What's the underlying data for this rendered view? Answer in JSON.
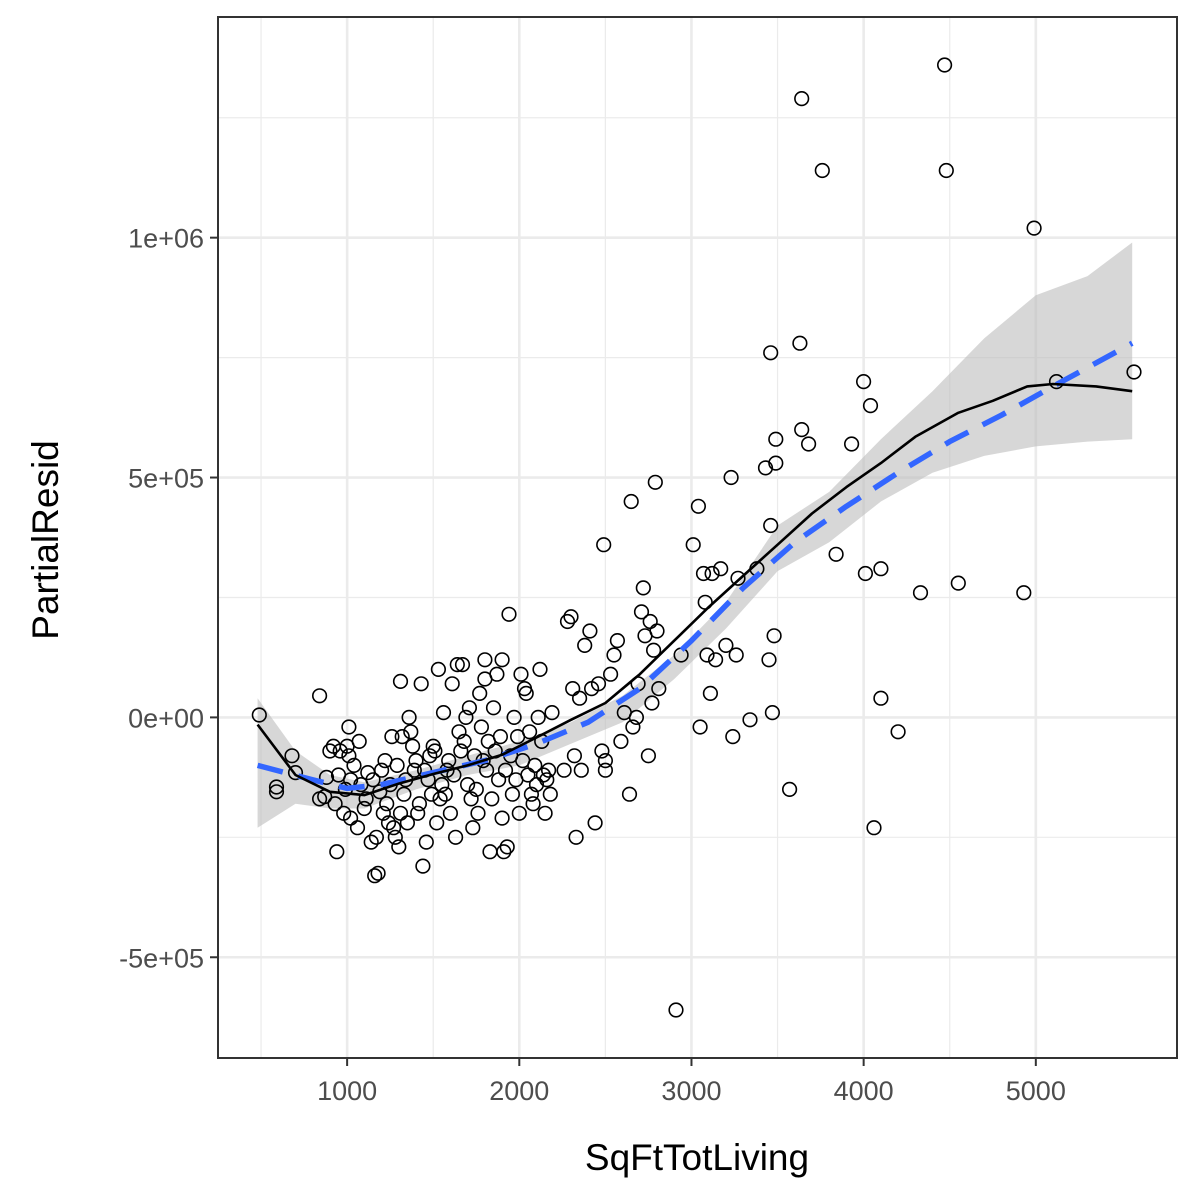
{
  "chart_data": {
    "type": "scatter",
    "title": "",
    "xlabel": "SqFtTotLiving",
    "ylabel": "PartialResid",
    "xlim": [
      250,
      5820
    ],
    "ylim": [
      -710000,
      1460000
    ],
    "x_ticks": [
      1000,
      2000,
      3000,
      4000,
      5000
    ],
    "x_tick_labels": [
      "1000",
      "2000",
      "3000",
      "4000",
      "5000"
    ],
    "y_ticks": [
      -500000,
      0,
      500000,
      1000000
    ],
    "y_tick_labels": [
      "-5e+05",
      "0e+00",
      "5e+05",
      "1e+06"
    ],
    "grid": true,
    "legend": "none",
    "colors": {
      "points": "#000000",
      "smooth_line": "#000000",
      "fit_line": "#3366FF",
      "ribbon": "#bdbdbd",
      "panel_border": "#333333",
      "grid": "#ebebeb"
    },
    "points": [
      [
        490,
        5000
      ],
      [
        590,
        -145000
      ],
      [
        590,
        -155000
      ],
      [
        680,
        -80000
      ],
      [
        700,
        -115000
      ],
      [
        840,
        45000
      ],
      [
        840,
        -170000
      ],
      [
        870,
        -165000
      ],
      [
        880,
        -125000
      ],
      [
        900,
        -70000
      ],
      [
        920,
        -60000
      ],
      [
        930,
        -180000
      ],
      [
        940,
        -280000
      ],
      [
        950,
        -120000
      ],
      [
        960,
        -70000
      ],
      [
        980,
        -200000
      ],
      [
        990,
        -150000
      ],
      [
        1000,
        -60000
      ],
      [
        1010,
        -20000
      ],
      [
        1010,
        -80000
      ],
      [
        1020,
        -130000
      ],
      [
        1020,
        -210000
      ],
      [
        1040,
        -100000
      ],
      [
        1060,
        -230000
      ],
      [
        1070,
        -50000
      ],
      [
        1080,
        -140000
      ],
      [
        1100,
        -190000
      ],
      [
        1110,
        -170000
      ],
      [
        1120,
        -115000
      ],
      [
        1140,
        -260000
      ],
      [
        1150,
        -130000
      ],
      [
        1160,
        -330000
      ],
      [
        1170,
        -250000
      ],
      [
        1180,
        -325000
      ],
      [
        1190,
        -155000
      ],
      [
        1200,
        -110000
      ],
      [
        1210,
        -200000
      ],
      [
        1220,
        -90000
      ],
      [
        1230,
        -180000
      ],
      [
        1240,
        -220000
      ],
      [
        1250,
        -140000
      ],
      [
        1260,
        -40000
      ],
      [
        1270,
        -230000
      ],
      [
        1280,
        -250000
      ],
      [
        1290,
        -100000
      ],
      [
        1300,
        -270000
      ],
      [
        1310,
        75000
      ],
      [
        1310,
        -200000
      ],
      [
        1320,
        -40000
      ],
      [
        1330,
        -160000
      ],
      [
        1340,
        -130000
      ],
      [
        1350,
        -220000
      ],
      [
        1360,
        0
      ],
      [
        1370,
        -30000
      ],
      [
        1380,
        -60000
      ],
      [
        1390,
        -110000
      ],
      [
        1400,
        -90000
      ],
      [
        1410,
        -200000
      ],
      [
        1420,
        -180000
      ],
      [
        1430,
        70000
      ],
      [
        1440,
        -310000
      ],
      [
        1450,
        -110000
      ],
      [
        1460,
        -260000
      ],
      [
        1470,
        -130000
      ],
      [
        1480,
        -80000
      ],
      [
        1490,
        -160000
      ],
      [
        1500,
        -60000
      ],
      [
        1510,
        -70000
      ],
      [
        1520,
        -220000
      ],
      [
        1530,
        100000
      ],
      [
        1540,
        -170000
      ],
      [
        1550,
        -140000
      ],
      [
        1560,
        10000
      ],
      [
        1570,
        -160000
      ],
      [
        1580,
        -110000
      ],
      [
        1590,
        -90000
      ],
      [
        1600,
        -200000
      ],
      [
        1610,
        70000
      ],
      [
        1620,
        -120000
      ],
      [
        1630,
        -250000
      ],
      [
        1640,
        110000
      ],
      [
        1650,
        -30000
      ],
      [
        1660,
        -70000
      ],
      [
        1670,
        110000
      ],
      [
        1680,
        -50000
      ],
      [
        1690,
        0
      ],
      [
        1700,
        -140000
      ],
      [
        1710,
        20000
      ],
      [
        1720,
        -170000
      ],
      [
        1730,
        -230000
      ],
      [
        1740,
        -80000
      ],
      [
        1750,
        -150000
      ],
      [
        1760,
        -200000
      ],
      [
        1770,
        50000
      ],
      [
        1780,
        -20000
      ],
      [
        1790,
        -90000
      ],
      [
        1800,
        120000
      ],
      [
        1800,
        80000
      ],
      [
        1810,
        -110000
      ],
      [
        1820,
        -50000
      ],
      [
        1830,
        -280000
      ],
      [
        1840,
        -170000
      ],
      [
        1850,
        20000
      ],
      [
        1860,
        -70000
      ],
      [
        1870,
        90000
      ],
      [
        1880,
        -130000
      ],
      [
        1890,
        -40000
      ],
      [
        1900,
        -210000
      ],
      [
        1900,
        120000
      ],
      [
        1910,
        -280000
      ],
      [
        1920,
        -110000
      ],
      [
        1930,
        -270000
      ],
      [
        1940,
        215000
      ],
      [
        1950,
        -80000
      ],
      [
        1960,
        -160000
      ],
      [
        1970,
        0
      ],
      [
        1980,
        -130000
      ],
      [
        1990,
        -40000
      ],
      [
        2000,
        -200000
      ],
      [
        2010,
        90000
      ],
      [
        2020,
        -90000
      ],
      [
        2030,
        60000
      ],
      [
        2040,
        50000
      ],
      [
        2050,
        -120000
      ],
      [
        2060,
        -30000
      ],
      [
        2070,
        -160000
      ],
      [
        2080,
        -180000
      ],
      [
        2090,
        -100000
      ],
      [
        2100,
        -140000
      ],
      [
        2110,
        0
      ],
      [
        2120,
        100000
      ],
      [
        2130,
        -50000
      ],
      [
        2140,
        -120000
      ],
      [
        2150,
        -200000
      ],
      [
        2160,
        -130000
      ],
      [
        2170,
        -110000
      ],
      [
        2180,
        -160000
      ],
      [
        2190,
        10000
      ],
      [
        2260,
        -110000
      ],
      [
        2280,
        200000
      ],
      [
        2300,
        210000
      ],
      [
        2310,
        60000
      ],
      [
        2320,
        -80000
      ],
      [
        2330,
        -250000
      ],
      [
        2350,
        40000
      ],
      [
        2360,
        -110000
      ],
      [
        2380,
        150000
      ],
      [
        2410,
        180000
      ],
      [
        2420,
        60000
      ],
      [
        2440,
        -220000
      ],
      [
        2460,
        70000
      ],
      [
        2480,
        -70000
      ],
      [
        2490,
        360000
      ],
      [
        2500,
        -110000
      ],
      [
        2500,
        -90000
      ],
      [
        2530,
        90000
      ],
      [
        2550,
        130000
      ],
      [
        2570,
        160000
      ],
      [
        2590,
        -50000
      ],
      [
        2610,
        10000
      ],
      [
        2640,
        -160000
      ],
      [
        2650,
        450000
      ],
      [
        2660,
        -20000
      ],
      [
        2680,
        0
      ],
      [
        2690,
        70000
      ],
      [
        2710,
        220000
      ],
      [
        2720,
        270000
      ],
      [
        2730,
        170000
      ],
      [
        2750,
        -80000
      ],
      [
        2760,
        200000
      ],
      [
        2770,
        30000
      ],
      [
        2780,
        140000
      ],
      [
        2790,
        490000
      ],
      [
        2800,
        180000
      ],
      [
        2810,
        60000
      ],
      [
        2910,
        -610000
      ],
      [
        2940,
        130000
      ],
      [
        3010,
        360000
      ],
      [
        3040,
        440000
      ],
      [
        3050,
        -20000
      ],
      [
        3070,
        300000
      ],
      [
        3080,
        240000
      ],
      [
        3090,
        130000
      ],
      [
        3110,
        50000
      ],
      [
        3120,
        300000
      ],
      [
        3140,
        120000
      ],
      [
        3170,
        310000
      ],
      [
        3200,
        150000
      ],
      [
        3230,
        500000
      ],
      [
        3240,
        -40000
      ],
      [
        3260,
        130000
      ],
      [
        3270,
        290000
      ],
      [
        3340,
        -5000
      ],
      [
        3380,
        310000
      ],
      [
        3430,
        520000
      ],
      [
        3450,
        120000
      ],
      [
        3460,
        760000
      ],
      [
        3460,
        400000
      ],
      [
        3470,
        10000
      ],
      [
        3480,
        170000
      ],
      [
        3490,
        580000
      ],
      [
        3490,
        530000
      ],
      [
        3570,
        -150000
      ],
      [
        3630,
        780000
      ],
      [
        3640,
        600000
      ],
      [
        3640,
        1290000
      ],
      [
        3680,
        570000
      ],
      [
        3760,
        1140000
      ],
      [
        3840,
        340000
      ],
      [
        3930,
        570000
      ],
      [
        4000,
        700000
      ],
      [
        4010,
        300000
      ],
      [
        4040,
        650000
      ],
      [
        4060,
        -230000
      ],
      [
        4100,
        40000
      ],
      [
        4100,
        310000
      ],
      [
        4200,
        -30000
      ],
      [
        4330,
        260000
      ],
      [
        4470,
        1360000
      ],
      [
        4480,
        1140000
      ],
      [
        4550,
        280000
      ],
      [
        4930,
        260000
      ],
      [
        4990,
        1020000
      ],
      [
        5120,
        700000
      ],
      [
        5570,
        720000
      ]
    ],
    "series": [
      {
        "kind": "loess",
        "values": [
          [
            480,
            -15000
          ],
          [
            700,
            -120000
          ],
          [
            900,
            -155000
          ],
          [
            1100,
            -162000
          ],
          [
            1300,
            -138000
          ],
          [
            1500,
            -118000
          ],
          [
            1700,
            -100000
          ],
          [
            1900,
            -78000
          ],
          [
            2100,
            -42000
          ],
          [
            2300,
            -5000
          ],
          [
            2500,
            30000
          ],
          [
            2700,
            90000
          ],
          [
            2900,
            160000
          ],
          [
            3100,
            230000
          ],
          [
            3300,
            295000
          ],
          [
            3500,
            360000
          ],
          [
            3700,
            425000
          ],
          [
            3900,
            480000
          ],
          [
            4100,
            530000
          ],
          [
            4300,
            585000
          ],
          [
            4550,
            635000
          ],
          [
            4750,
            660000
          ],
          [
            4950,
            690000
          ],
          [
            5100,
            695000
          ],
          [
            5350,
            690000
          ],
          [
            5560,
            680000
          ]
        ]
      },
      {
        "kind": "linear-fit",
        "values": [
          [
            480,
            -100000
          ],
          [
            800,
            -130000
          ],
          [
            1000,
            -148000
          ],
          [
            1200,
            -140000
          ],
          [
            1500,
            -115000
          ],
          [
            1800,
            -90000
          ],
          [
            2100,
            -55000
          ],
          [
            2400,
            -10000
          ],
          [
            2700,
            60000
          ],
          [
            3000,
            160000
          ],
          [
            3300,
            270000
          ],
          [
            3600,
            365000
          ],
          [
            3900,
            440000
          ],
          [
            4200,
            510000
          ],
          [
            4500,
            575000
          ],
          [
            4800,
            630000
          ],
          [
            5100,
            690000
          ],
          [
            5560,
            780000
          ]
        ]
      }
    ],
    "ribbon": [
      [
        480,
        40000,
        -230000
      ],
      [
        700,
        -70000,
        -180000
      ],
      [
        900,
        -120000,
        -190000
      ],
      [
        1100,
        -135000,
        -190000
      ],
      [
        1400,
        -110000,
        -150000
      ],
      [
        1700,
        -80000,
        -120000
      ],
      [
        2000,
        -50000,
        -100000
      ],
      [
        2300,
        -10000,
        -55000
      ],
      [
        2600,
        45000,
        -10000
      ],
      [
        2900,
        130000,
        80000
      ],
      [
        3200,
        240000,
        185000
      ],
      [
        3500,
        400000,
        305000
      ],
      [
        3800,
        470000,
        365000
      ],
      [
        4100,
        580000,
        450000
      ],
      [
        4400,
        680000,
        510000
      ],
      [
        4700,
        790000,
        545000
      ],
      [
        5000,
        880000,
        565000
      ],
      [
        5300,
        920000,
        575000
      ],
      [
        5560,
        990000,
        580000
      ]
    ]
  }
}
